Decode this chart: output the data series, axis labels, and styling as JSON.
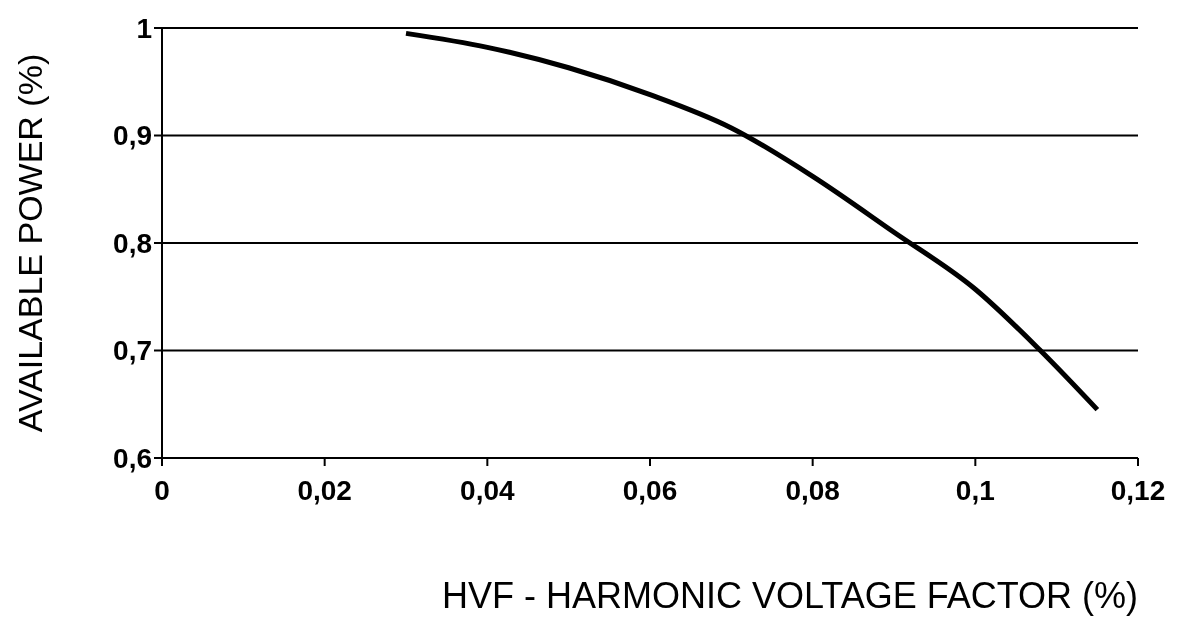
{
  "chart_data": {
    "type": "line",
    "xlabel": "HVF - HARMONIC VOLTAGE FACTOR (%)",
    "ylabel": "AVAILABLE POWER (%)",
    "x": [
      0.03,
      0.04,
      0.05,
      0.06,
      0.07,
      0.08,
      0.09,
      0.1,
      0.108,
      0.115
    ],
    "series": [
      {
        "color": "#000000",
        "values": [
          0.995,
          0.982,
          0.963,
          0.938,
          0.907,
          0.862,
          0.81,
          0.757,
          0.7,
          0.645
        ]
      }
    ],
    "xlim": [
      0,
      0.12
    ],
    "xticks": [
      {
        "value": 0,
        "label": "0"
      },
      {
        "value": 0.02,
        "label": "0,02"
      },
      {
        "value": 0.04,
        "label": "0,04"
      },
      {
        "value": 0.06,
        "label": "0,06"
      },
      {
        "value": 0.08,
        "label": "0,08"
      },
      {
        "value": 0.1,
        "label": "0,1"
      },
      {
        "value": 0.12,
        "label": "0,12"
      }
    ],
    "ylim": [
      0.6,
      1
    ],
    "yticks": [
      {
        "value": 0.6,
        "label": "0,6"
      },
      {
        "value": 0.7,
        "label": "0,7"
      },
      {
        "value": 0.8,
        "label": "0,8"
      },
      {
        "value": 0.9,
        "label": "0,9"
      },
      {
        "value": 1,
        "label": "1"
      }
    ],
    "grid": "y",
    "marker": "none",
    "line_style": "solid"
  }
}
